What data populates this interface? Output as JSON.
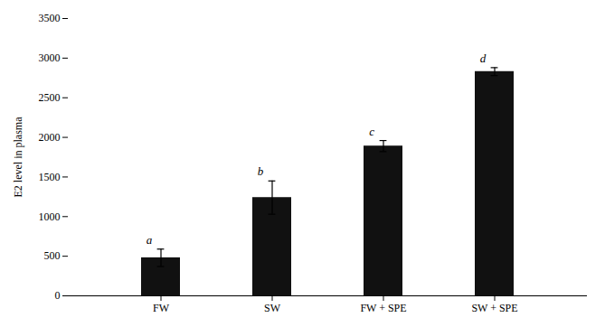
{
  "chart_data": {
    "type": "bar",
    "categories": [
      "FW",
      "SW",
      "FW + SPE",
      "SW + SPE"
    ],
    "values": [
      480,
      1240,
      1890,
      2830
    ],
    "errors": [
      110,
      210,
      70,
      50
    ],
    "annotations": [
      "a",
      "b",
      "c",
      "d"
    ],
    "color": "#111111",
    "ylabel": "E2 level in plasma",
    "ylim": [
      0,
      3500
    ],
    "yticks": [
      0,
      500,
      1000,
      1500,
      2000,
      2500,
      3000,
      3500
    ],
    "grid": false
  }
}
